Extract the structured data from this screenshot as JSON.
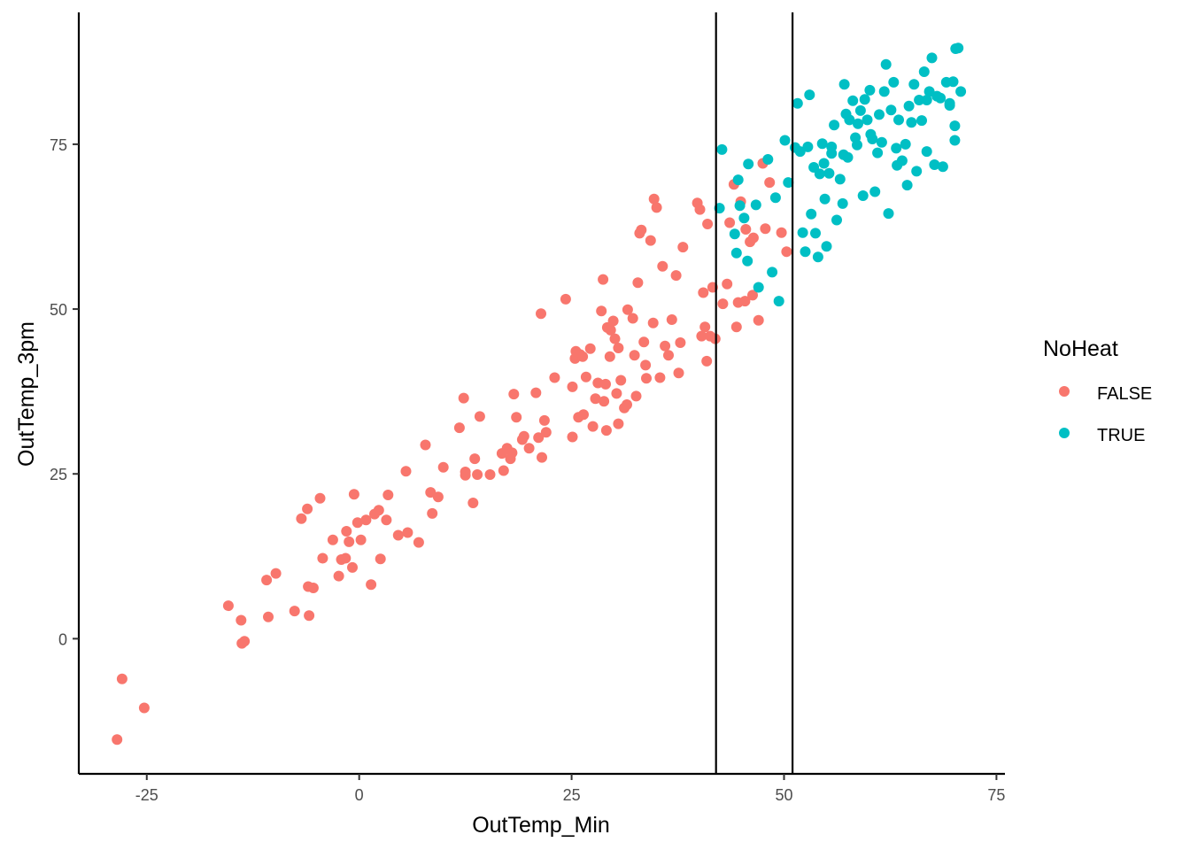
{
  "chart_data": {
    "type": "scatter",
    "title": "",
    "xlabel": "OutTemp_Min",
    "ylabel": "OutTemp_3pm",
    "xlim": [
      -33,
      76
    ],
    "ylim": [
      -20.5,
      95
    ],
    "x_ticks": [
      -25,
      0,
      25,
      50,
      75
    ],
    "y_ticks": [
      0,
      25,
      50,
      75
    ],
    "x_tick_labels": [
      "-25",
      "0",
      "25",
      "50",
      "75"
    ],
    "y_tick_labels": [
      "0",
      "25",
      "50",
      "75"
    ],
    "grid": false,
    "vlines": [
      42,
      51
    ],
    "legend": {
      "title": "NoHeat",
      "position": "right",
      "entries": [
        {
          "label": "FALSE",
          "color": "#F8766D"
        },
        {
          "label": "TRUE",
          "color": "#00BFC4"
        }
      ]
    },
    "series": [
      {
        "name": "FALSE",
        "color": "#F8766D",
        "points": [
          [
            -28.5,
            -15.3
          ],
          [
            -27.9,
            -6.1
          ],
          [
            -25.3,
            -10.5
          ],
          [
            -15.4,
            5.0
          ],
          [
            -13.9,
            2.8
          ],
          [
            -13.8,
            -0.7
          ],
          [
            -13.5,
            -0.4
          ],
          [
            -10.9,
            8.9
          ],
          [
            -10.7,
            3.3
          ],
          [
            -9.8,
            9.9
          ],
          [
            -7.6,
            4.2
          ],
          [
            -6.8,
            18.2
          ],
          [
            -6.1,
            19.7
          ],
          [
            -6.0,
            7.9
          ],
          [
            -5.9,
            3.5
          ],
          [
            -5.4,
            7.7
          ],
          [
            -4.6,
            21.3
          ],
          [
            -4.3,
            12.2
          ],
          [
            -3.1,
            15.0
          ],
          [
            -2.4,
            9.5
          ],
          [
            -2.1,
            12.0
          ],
          [
            -1.6,
            12.2
          ],
          [
            -1.5,
            16.3
          ],
          [
            -1.2,
            14.7
          ],
          [
            -0.8,
            10.8
          ],
          [
            -0.6,
            21.9
          ],
          [
            -0.2,
            17.6
          ],
          [
            0.2,
            15.0
          ],
          [
            0.8,
            18.0
          ],
          [
            1.4,
            8.2
          ],
          [
            1.8,
            18.9
          ],
          [
            2.3,
            19.5
          ],
          [
            2.5,
            12.1
          ],
          [
            3.2,
            18.0
          ],
          [
            3.4,
            21.8
          ],
          [
            4.6,
            15.7
          ],
          [
            5.5,
            25.4
          ],
          [
            5.7,
            16.1
          ],
          [
            7.0,
            14.6
          ],
          [
            7.8,
            29.4
          ],
          [
            8.4,
            22.2
          ],
          [
            8.6,
            19.0
          ],
          [
            9.3,
            21.5
          ],
          [
            9.9,
            26.0
          ],
          [
            11.8,
            32.0
          ],
          [
            12.3,
            36.5
          ],
          [
            12.5,
            24.8
          ],
          [
            12.5,
            25.3
          ],
          [
            13.4,
            20.6
          ],
          [
            13.6,
            27.3
          ],
          [
            13.9,
            24.9
          ],
          [
            14.2,
            33.7
          ],
          [
            15.4,
            24.9
          ],
          [
            16.8,
            28.1
          ],
          [
            17.0,
            25.5
          ],
          [
            17.4,
            28.9
          ],
          [
            17.8,
            27.3
          ],
          [
            18.0,
            28.2
          ],
          [
            18.2,
            37.1
          ],
          [
            18.5,
            33.6
          ],
          [
            19.2,
            30.2
          ],
          [
            19.4,
            30.7
          ],
          [
            20.0,
            28.9
          ],
          [
            20.8,
            37.3
          ],
          [
            21.1,
            30.5
          ],
          [
            21.4,
            49.3
          ],
          [
            21.5,
            27.5
          ],
          [
            21.8,
            33.1
          ],
          [
            22.0,
            31.3
          ],
          [
            23.0,
            39.6
          ],
          [
            24.3,
            51.5
          ],
          [
            25.1,
            30.6
          ],
          [
            25.1,
            38.2
          ],
          [
            25.4,
            42.5
          ],
          [
            25.5,
            43.6
          ],
          [
            25.8,
            33.6
          ],
          [
            26.0,
            43.1
          ],
          [
            26.3,
            42.8
          ],
          [
            26.4,
            34.0
          ],
          [
            26.7,
            39.7
          ],
          [
            27.2,
            44.0
          ],
          [
            27.5,
            32.2
          ],
          [
            27.8,
            36.4
          ],
          [
            28.1,
            38.8
          ],
          [
            28.5,
            49.7
          ],
          [
            28.7,
            54.5
          ],
          [
            28.8,
            36.0
          ],
          [
            29.0,
            38.6
          ],
          [
            29.1,
            31.6
          ],
          [
            29.2,
            47.2
          ],
          [
            29.5,
            42.8
          ],
          [
            29.6,
            46.8
          ],
          [
            29.9,
            48.2
          ],
          [
            30.1,
            45.5
          ],
          [
            30.3,
            37.2
          ],
          [
            30.5,
            44.1
          ],
          [
            30.5,
            32.6
          ],
          [
            30.8,
            39.2
          ],
          [
            31.2,
            35.0
          ],
          [
            31.5,
            35.5
          ],
          [
            31.6,
            49.9
          ],
          [
            32.2,
            48.6
          ],
          [
            32.4,
            43.0
          ],
          [
            32.6,
            36.8
          ],
          [
            32.8,
            54.0
          ],
          [
            33.0,
            61.5
          ],
          [
            33.2,
            62.0
          ],
          [
            33.5,
            45.0
          ],
          [
            33.7,
            41.5
          ],
          [
            33.8,
            39.5
          ],
          [
            34.3,
            60.4
          ],
          [
            34.6,
            47.9
          ],
          [
            34.7,
            66.7
          ],
          [
            35.0,
            65.4
          ],
          [
            35.4,
            39.6
          ],
          [
            35.7,
            56.5
          ],
          [
            36.0,
            44.4
          ],
          [
            36.4,
            43.0
          ],
          [
            36.8,
            48.4
          ],
          [
            37.3,
            55.1
          ],
          [
            37.6,
            40.3
          ],
          [
            37.8,
            44.9
          ],
          [
            38.1,
            59.4
          ],
          [
            39.8,
            66.1
          ],
          [
            40.1,
            65.1
          ],
          [
            40.3,
            45.9
          ],
          [
            40.5,
            52.5
          ],
          [
            40.7,
            47.3
          ],
          [
            40.9,
            42.1
          ],
          [
            41.0,
            62.9
          ],
          [
            41.3,
            45.9
          ],
          [
            41.6,
            53.3
          ],
          [
            41.9,
            45.5
          ],
          [
            42.8,
            50.8
          ],
          [
            43.3,
            53.8
          ],
          [
            43.6,
            63.1
          ],
          [
            44.1,
            68.9
          ],
          [
            44.4,
            47.3
          ],
          [
            44.6,
            51.0
          ],
          [
            44.9,
            66.3
          ],
          [
            45.4,
            51.2
          ],
          [
            45.5,
            62.1
          ],
          [
            46.0,
            60.2
          ],
          [
            46.3,
            52.1
          ],
          [
            46.4,
            60.8
          ],
          [
            47.0,
            48.3
          ],
          [
            47.5,
            72.1
          ],
          [
            47.8,
            62.2
          ],
          [
            48.3,
            69.2
          ],
          [
            49.7,
            61.6
          ],
          [
            50.3,
            58.7
          ]
        ]
      },
      {
        "name": "TRUE",
        "color": "#00BFC4",
        "points": [
          [
            42.4,
            65.3
          ],
          [
            42.7,
            74.2
          ],
          [
            44.2,
            61.4
          ],
          [
            44.4,
            58.5
          ],
          [
            44.6,
            69.6
          ],
          [
            44.8,
            65.7
          ],
          [
            45.3,
            63.8
          ],
          [
            45.7,
            57.3
          ],
          [
            45.8,
            72.0
          ],
          [
            46.7,
            65.8
          ],
          [
            47.0,
            53.3
          ],
          [
            48.1,
            72.7
          ],
          [
            48.6,
            55.6
          ],
          [
            49.0,
            66.9
          ],
          [
            49.4,
            51.2
          ],
          [
            50.1,
            75.6
          ],
          [
            50.5,
            69.2
          ],
          [
            51.3,
            74.5
          ],
          [
            51.6,
            81.2
          ],
          [
            51.9,
            73.9
          ],
          [
            52.2,
            61.6
          ],
          [
            52.5,
            58.7
          ],
          [
            52.8,
            74.6
          ],
          [
            53.0,
            82.5
          ],
          [
            53.2,
            64.4
          ],
          [
            53.5,
            71.5
          ],
          [
            53.7,
            61.5
          ],
          [
            54.0,
            57.9
          ],
          [
            54.2,
            70.5
          ],
          [
            54.5,
            75.1
          ],
          [
            54.8,
            66.7
          ],
          [
            55.0,
            59.5
          ],
          [
            55.3,
            70.6
          ],
          [
            55.6,
            73.6
          ],
          [
            55.9,
            77.9
          ],
          [
            56.2,
            63.5
          ],
          [
            56.6,
            69.7
          ],
          [
            56.9,
            66.0
          ],
          [
            57.1,
            84.1
          ],
          [
            57.3,
            79.6
          ],
          [
            57.5,
            73.0
          ],
          [
            57.7,
            78.7
          ],
          [
            58.1,
            81.6
          ],
          [
            58.4,
            76.0
          ],
          [
            58.7,
            78.1
          ],
          [
            59.0,
            80.1
          ],
          [
            59.3,
            67.2
          ],
          [
            59.5,
            81.8
          ],
          [
            59.8,
            78.7
          ],
          [
            60.1,
            83.2
          ],
          [
            60.4,
            75.8
          ],
          [
            60.7,
            67.8
          ],
          [
            61.0,
            73.7
          ],
          [
            61.2,
            79.5
          ],
          [
            61.5,
            75.3
          ],
          [
            61.8,
            83.0
          ],
          [
            62.0,
            87.1
          ],
          [
            62.3,
            64.5
          ],
          [
            62.6,
            80.2
          ],
          [
            62.9,
            84.4
          ],
          [
            63.2,
            74.4
          ],
          [
            63.5,
            78.7
          ],
          [
            63.9,
            72.5
          ],
          [
            64.3,
            75.0
          ],
          [
            64.7,
            80.8
          ],
          [
            65.0,
            78.3
          ],
          [
            65.3,
            84.1
          ],
          [
            65.6,
            70.9
          ],
          [
            65.9,
            81.7
          ],
          [
            66.2,
            78.6
          ],
          [
            66.5,
            86.0
          ],
          [
            66.8,
            81.7
          ],
          [
            67.1,
            83.0
          ],
          [
            67.4,
            88.1
          ],
          [
            67.7,
            71.9
          ],
          [
            68.0,
            82.3
          ],
          [
            68.4,
            82.0
          ],
          [
            68.7,
            71.6
          ],
          [
            69.1,
            84.4
          ],
          [
            69.5,
            80.9
          ],
          [
            69.9,
            84.5
          ],
          [
            70.2,
            89.5
          ],
          [
            70.5,
            89.6
          ],
          [
            70.8,
            83.0
          ],
          [
            70.1,
            77.8
          ],
          [
            70.1,
            75.6
          ],
          [
            69.5,
            81.2
          ],
          [
            66.8,
            73.9
          ],
          [
            64.5,
            68.8
          ],
          [
            63.3,
            71.8
          ],
          [
            60.2,
            76.5
          ],
          [
            58.6,
            74.9
          ],
          [
            57.0,
            73.4
          ],
          [
            55.6,
            74.6
          ],
          [
            54.7,
            72.1
          ]
        ]
      }
    ]
  }
}
